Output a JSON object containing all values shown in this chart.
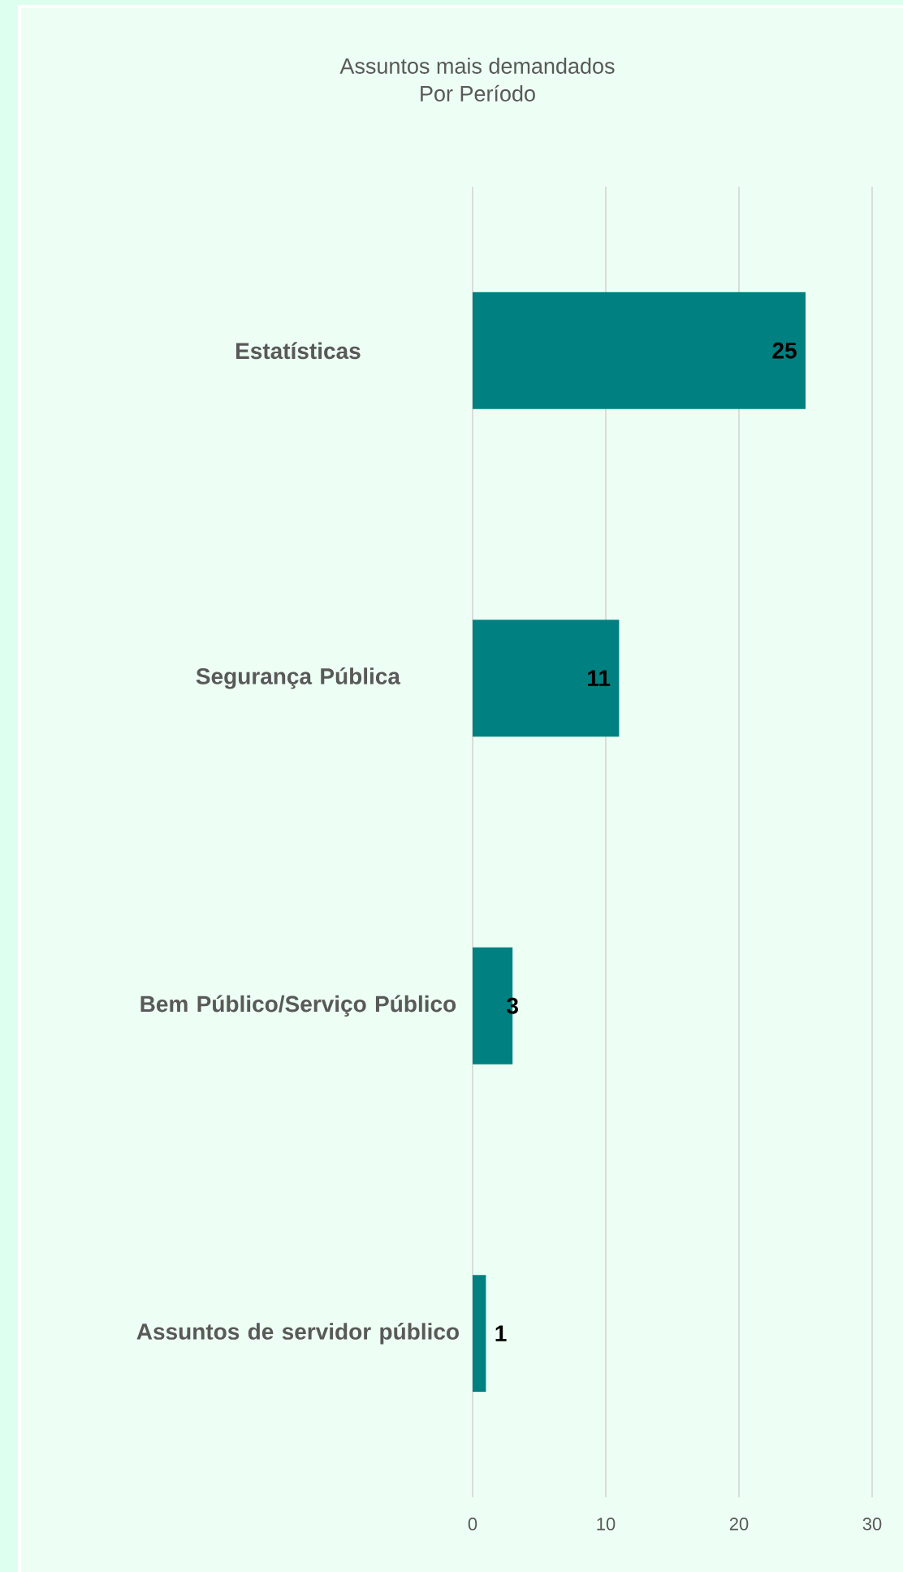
{
  "chart_data": {
    "type": "bar",
    "orientation": "horizontal",
    "title": "Assuntos mais demandados",
    "subtitle": "Por Período",
    "categories": [
      "Estatísticas",
      "Segurança Pública",
      "Bem Público/Serviço Público",
      "Assuntos de servidor público"
    ],
    "values": [
      25,
      11,
      3,
      1
    ],
    "color": "#008080",
    "xlim": [
      0,
      30
    ],
    "xticks": [
      0,
      10,
      20,
      30
    ],
    "grid": "x",
    "data_labels": true
  }
}
